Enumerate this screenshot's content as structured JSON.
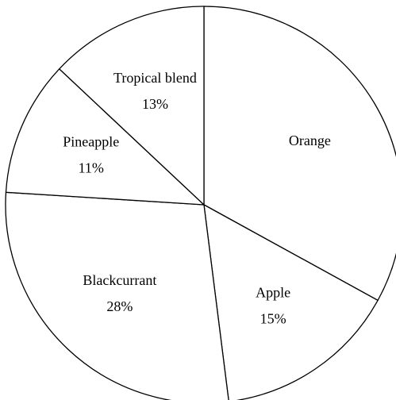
{
  "chart_data": {
    "type": "pie",
    "categories": [
      "Orange",
      "Apple",
      "Blackcurrant",
      "Pineapple",
      "Tropical blend"
    ],
    "values": [
      33,
      15,
      28,
      11,
      13
    ],
    "value_labels": [
      null,
      "15%",
      "28%",
      "11%",
      "13%"
    ],
    "color": "#ffffff"
  }
}
